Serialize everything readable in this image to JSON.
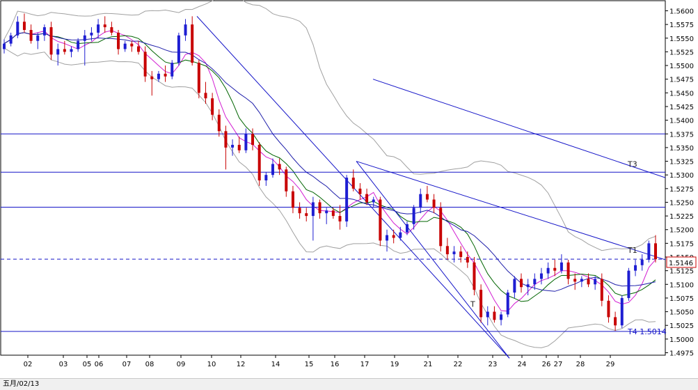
{
  "chart_data": {
    "type": "candlestick",
    "instrument_timeframe": "",
    "footer_label": "五月/02/13",
    "y_ticks": [
      "1.5600",
      "1.5575",
      "1.5550",
      "1.5525",
      "1.5500",
      "1.5475",
      "1.5450",
      "1.5425",
      "1.5400",
      "1.5375",
      "1.5350",
      "1.5325",
      "1.5300",
      "1.5275",
      "1.5250",
      "1.5225",
      "1.5200",
      "1.5175",
      "1.5150",
      "1.5125",
      "1.5100",
      "1.5075",
      "1.5050",
      "1.5025",
      "1.5000",
      "1.4975"
    ],
    "ylim": [
      1.4975,
      1.56
    ],
    "x_ticks": [
      "02",
      "03",
      "05",
      "06",
      "07",
      "08",
      "09",
      "10",
      "12",
      "14",
      "15",
      "16",
      "17",
      "19",
      "21",
      "22",
      "23",
      "24",
      "26",
      "27",
      "28",
      "29"
    ],
    "current_price": "1.5146",
    "horizontal_lines": [
      1.5375,
      1.5305,
      1.5241,
      1.5014
    ],
    "dashed_line": 1.5146,
    "annotations": [
      {
        "text": "T3"
      },
      {
        "text": "T1"
      },
      {
        "text": "T"
      },
      {
        "text": "T4 1.5014"
      }
    ],
    "colors": {
      "bull": "#1e1ed2",
      "bear": "#c80000",
      "trendline": "#1414c8",
      "bollinger": "#a0a0a0",
      "ma_fast": "#d21ed2",
      "ma_mid": "#006400",
      "ma_slow": "#1e1eaa",
      "price_box": "#cc0000"
    },
    "candles": [
      [
        1.553,
        1.5548,
        1.5522,
        1.554
      ],
      [
        1.554,
        1.556,
        1.5535,
        1.5555
      ],
      [
        1.5555,
        1.559,
        1.555,
        1.558
      ],
      [
        1.558,
        1.5595,
        1.556,
        1.5565
      ],
      [
        1.5565,
        1.5575,
        1.554,
        1.5545
      ],
      [
        1.5545,
        1.556,
        1.553,
        1.5555
      ],
      [
        1.5555,
        1.5575,
        1.5545,
        1.557
      ],
      [
        1.557,
        1.558,
        1.551,
        1.552
      ],
      [
        1.552,
        1.554,
        1.55,
        1.553
      ],
      [
        1.553,
        1.5545,
        1.552,
        1.5525
      ],
      [
        1.5525,
        1.5535,
        1.5515,
        1.553
      ],
      [
        1.553,
        1.555,
        1.5525,
        1.5545
      ],
      [
        1.5545,
        1.5565,
        1.55,
        1.5555
      ],
      [
        1.5555,
        1.557,
        1.5545,
        1.556
      ],
      [
        1.556,
        1.5585,
        1.555,
        1.5575
      ],
      [
        1.5575,
        1.559,
        1.556,
        1.557
      ],
      [
        1.557,
        1.558,
        1.5555,
        1.556
      ],
      [
        1.556,
        1.5565,
        1.552,
        1.553
      ],
      [
        1.553,
        1.5545,
        1.5525,
        1.554
      ],
      [
        1.554,
        1.5545,
        1.5525,
        1.5535
      ],
      [
        1.5535,
        1.5545,
        1.552,
        1.5525
      ],
      [
        1.5525,
        1.5535,
        1.547,
        1.548
      ],
      [
        1.548,
        1.549,
        1.5445,
        1.5475
      ],
      [
        1.5475,
        1.549,
        1.547,
        1.5485
      ],
      [
        1.5485,
        1.55,
        1.547,
        1.548
      ],
      [
        1.548,
        1.551,
        1.5475,
        1.5505
      ],
      [
        1.5505,
        1.556,
        1.55,
        1.5555
      ],
      [
        1.5555,
        1.5585,
        1.5545,
        1.5575
      ],
      [
        1.5575,
        1.559,
        1.55,
        1.5505
      ],
      [
        1.5505,
        1.551,
        1.544,
        1.545
      ],
      [
        1.545,
        1.547,
        1.543,
        1.544
      ],
      [
        1.544,
        1.545,
        1.54,
        1.541
      ],
      [
        1.541,
        1.542,
        1.537,
        1.538
      ],
      [
        1.538,
        1.539,
        1.531,
        1.535
      ],
      [
        1.535,
        1.5365,
        1.5335,
        1.5355
      ],
      [
        1.5355,
        1.537,
        1.534,
        1.5345
      ],
      [
        1.5345,
        1.5385,
        1.534,
        1.5375
      ],
      [
        1.5375,
        1.5385,
        1.5345,
        1.5355
      ],
      [
        1.5355,
        1.536,
        1.528,
        1.529
      ],
      [
        1.529,
        1.5305,
        1.528,
        1.53
      ],
      [
        1.53,
        1.533,
        1.5295,
        1.532
      ],
      [
        1.532,
        1.533,
        1.53,
        1.531
      ],
      [
        1.531,
        1.5315,
        1.526,
        1.527
      ],
      [
        1.527,
        1.528,
        1.523,
        1.524
      ],
      [
        1.524,
        1.525,
        1.522,
        1.523
      ],
      [
        1.523,
        1.524,
        1.5215,
        1.5225
      ],
      [
        1.5225,
        1.526,
        1.518,
        1.525
      ],
      [
        1.525,
        1.5255,
        1.522,
        1.523
      ],
      [
        1.523,
        1.524,
        1.521,
        1.5235
      ],
      [
        1.5235,
        1.524,
        1.522,
        1.5225
      ],
      [
        1.5225,
        1.5245,
        1.52,
        1.5215
      ],
      [
        1.5215,
        1.53,
        1.5205,
        1.5295
      ],
      [
        1.5295,
        1.531,
        1.527,
        1.5275
      ],
      [
        1.5275,
        1.5285,
        1.5255,
        1.5265
      ],
      [
        1.5265,
        1.5275,
        1.5245,
        1.525
      ],
      [
        1.525,
        1.526,
        1.524,
        1.5255
      ],
      [
        1.5255,
        1.526,
        1.517,
        1.518
      ],
      [
        1.518,
        1.52,
        1.516,
        1.519
      ],
      [
        1.519,
        1.52,
        1.5175,
        1.5185
      ],
      [
        1.5185,
        1.5205,
        1.518,
        1.5195
      ],
      [
        1.5195,
        1.5215,
        1.519,
        1.521
      ],
      [
        1.521,
        1.5245,
        1.52,
        1.524
      ],
      [
        1.524,
        1.5275,
        1.523,
        1.5265
      ],
      [
        1.5265,
        1.528,
        1.525,
        1.5255
      ],
      [
        1.5255,
        1.5265,
        1.523,
        1.524
      ],
      [
        1.524,
        1.525,
        1.516,
        1.517
      ],
      [
        1.517,
        1.5185,
        1.5145,
        1.5155
      ],
      [
        1.5155,
        1.517,
        1.514,
        1.516
      ],
      [
        1.516,
        1.517,
        1.514,
        1.515
      ],
      [
        1.515,
        1.516,
        1.513,
        1.514
      ],
      [
        1.514,
        1.515,
        1.508,
        1.509
      ],
      [
        1.509,
        1.51,
        1.503,
        1.504
      ],
      [
        1.504,
        1.506,
        1.5025,
        1.505
      ],
      [
        1.505,
        1.506,
        1.503,
        1.5035
      ],
      [
        1.5035,
        1.505,
        1.5025,
        1.5045
      ],
      [
        1.5045,
        1.509,
        1.504,
        1.5085
      ],
      [
        1.5085,
        1.5115,
        1.5075,
        1.511
      ],
      [
        1.511,
        1.512,
        1.5085,
        1.5095
      ],
      [
        1.5095,
        1.511,
        1.508,
        1.51
      ],
      [
        1.51,
        1.512,
        1.509,
        1.511
      ],
      [
        1.511,
        1.513,
        1.51,
        1.512
      ],
      [
        1.512,
        1.514,
        1.511,
        1.513
      ],
      [
        1.513,
        1.5145,
        1.5115,
        1.5125
      ],
      [
        1.5125,
        1.5155,
        1.512,
        1.514
      ],
      [
        1.514,
        1.5145,
        1.51,
        1.511
      ],
      [
        1.511,
        1.512,
        1.509,
        1.5105
      ],
      [
        1.5105,
        1.5115,
        1.5095,
        1.511
      ],
      [
        1.511,
        1.512,
        1.5095,
        1.51
      ],
      [
        1.51,
        1.5115,
        1.509,
        1.511
      ],
      [
        1.511,
        1.512,
        1.506,
        1.507
      ],
      [
        1.507,
        1.508,
        1.503,
        1.504
      ],
      [
        1.504,
        1.505,
        1.5015,
        1.5025
      ],
      [
        1.5025,
        1.508,
        1.502,
        1.5075
      ],
      [
        1.5075,
        1.513,
        1.507,
        1.5125
      ],
      [
        1.5125,
        1.5145,
        1.5115,
        1.5135
      ],
      [
        1.5135,
        1.5155,
        1.5125,
        1.5145
      ],
      [
        1.5145,
        1.518,
        1.514,
        1.5175
      ],
      [
        1.5175,
        1.519,
        1.514,
        1.5146
      ]
    ]
  }
}
